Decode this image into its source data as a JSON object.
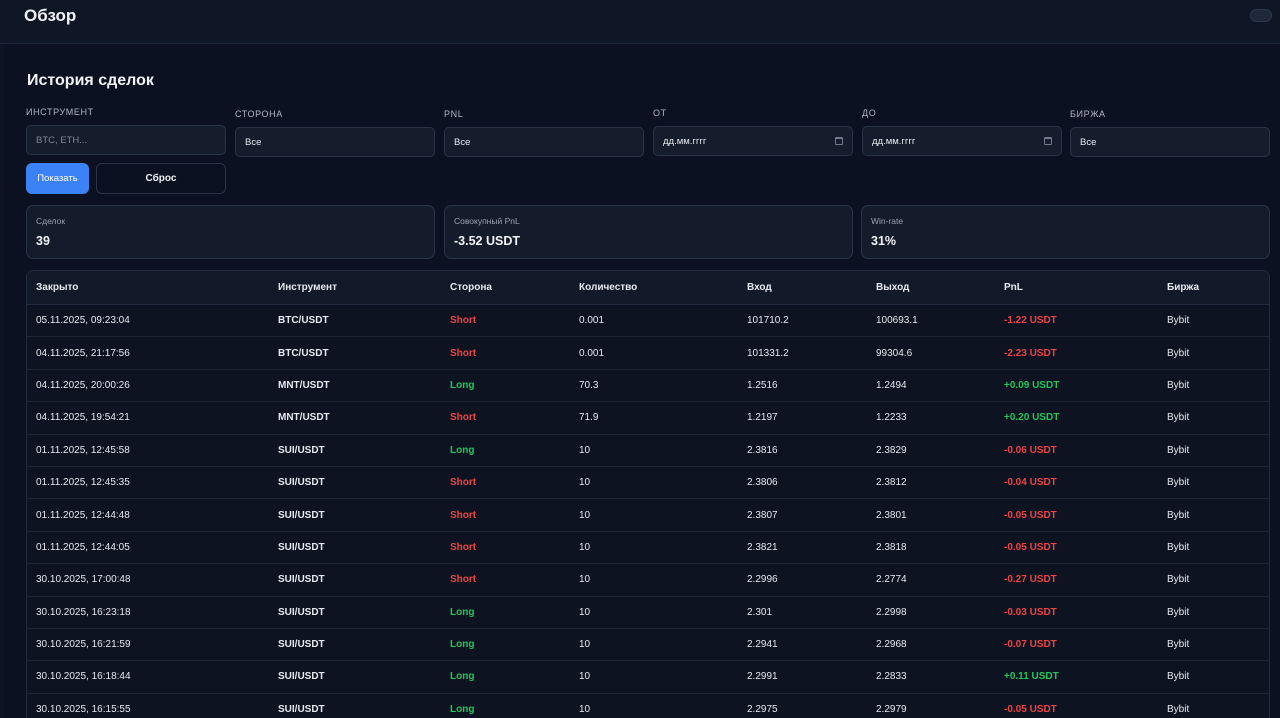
{
  "header": {
    "title": "Обзор"
  },
  "section": {
    "title": "История сделок"
  },
  "filters": {
    "instrument": {
      "label": "Инструмент",
      "placeholder": "BTC, ETH..."
    },
    "side": {
      "label": "Сторона",
      "value": "Все"
    },
    "pnl": {
      "label": "PnL",
      "value": "Все"
    },
    "from": {
      "label": "От",
      "value": "дд.мм.гггг"
    },
    "to": {
      "label": "До",
      "value": "дд.мм.гггг"
    },
    "exchange": {
      "label": "Биржа",
      "value": "Все"
    },
    "show_label": "Показать",
    "reset_label": "Сброс"
  },
  "stats": {
    "deals": {
      "label": "Сделок",
      "value": "39"
    },
    "pnl": {
      "label": "Совокупный PnL",
      "value": "-3.52 USDT"
    },
    "winrate": {
      "label": "Win-rate",
      "value": "31%"
    }
  },
  "colors": {
    "accent": "#3b82f6",
    "short": "#ef4444",
    "long": "#22c55e"
  },
  "table": {
    "columns": [
      "Закрыто",
      "Инструмент",
      "Сторона",
      "Количество",
      "Вход",
      "Выход",
      "PnL",
      "Биржа"
    ],
    "rows": [
      [
        "05.11.2025, 09:23:04",
        "BTC/USDT",
        "Short",
        "0.001",
        "101710.2",
        "100693.1",
        "-1.22 USDT",
        "Bybit"
      ],
      [
        "04.11.2025, 21:17:56",
        "BTC/USDT",
        "Short",
        "0.001",
        "101331.2",
        "99304.6",
        "-2.23 USDT",
        "Bybit"
      ],
      [
        "04.11.2025, 20:00:26",
        "MNT/USDT",
        "Long",
        "70.3",
        "1.2516",
        "1.2494",
        "+0.09 USDT",
        "Bybit"
      ],
      [
        "04.11.2025, 19:54:21",
        "MNT/USDT",
        "Short",
        "71.9",
        "1.2197",
        "1.2233",
        "+0.20 USDT",
        "Bybit"
      ],
      [
        "01.11.2025, 12:45:58",
        "SUI/USDT",
        "Long",
        "10",
        "2.3816",
        "2.3829",
        "-0.06 USDT",
        "Bybit"
      ],
      [
        "01.11.2025, 12:45:35",
        "SUI/USDT",
        "Short",
        "10",
        "2.3806",
        "2.3812",
        "-0.04 USDT",
        "Bybit"
      ],
      [
        "01.11.2025, 12:44:48",
        "SUI/USDT",
        "Short",
        "10",
        "2.3807",
        "2.3801",
        "-0.05 USDT",
        "Bybit"
      ],
      [
        "01.11.2025, 12:44:05",
        "SUI/USDT",
        "Short",
        "10",
        "2.3821",
        "2.3818",
        "-0.05 USDT",
        "Bybit"
      ],
      [
        "30.10.2025, 17:00:48",
        "SUI/USDT",
        "Short",
        "10",
        "2.2996",
        "2.2774",
        "-0.27 USDT",
        "Bybit"
      ],
      [
        "30.10.2025, 16:23:18",
        "SUI/USDT",
        "Long",
        "10",
        "2.301",
        "2.2998",
        "-0.03 USDT",
        "Bybit"
      ],
      [
        "30.10.2025, 16:21:59",
        "SUI/USDT",
        "Long",
        "10",
        "2.2941",
        "2.2968",
        "-0.07 USDT",
        "Bybit"
      ],
      [
        "30.10.2025, 16:18:44",
        "SUI/USDT",
        "Long",
        "10",
        "2.2991",
        "2.2833",
        "+0.11 USDT",
        "Bybit"
      ],
      [
        "30.10.2025, 16:15:55",
        "SUI/USDT",
        "Long",
        "10",
        "2.2975",
        "2.2979",
        "-0.05 USDT",
        "Bybit"
      ]
    ]
  }
}
